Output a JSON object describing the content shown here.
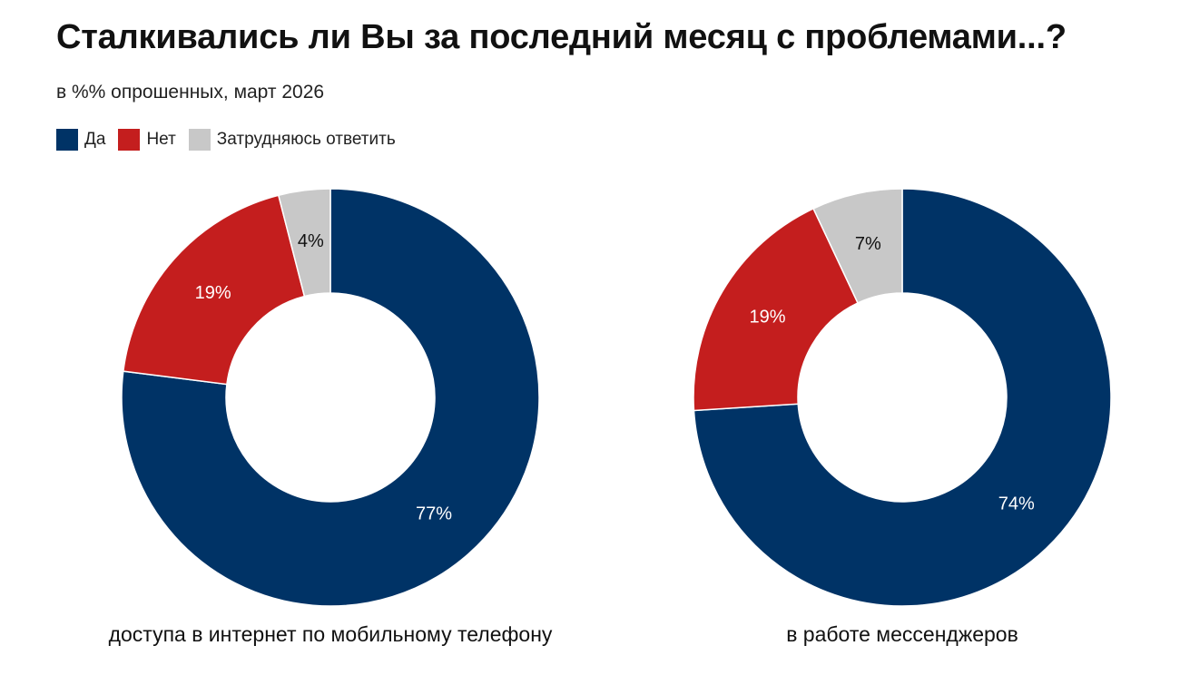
{
  "chart_data": [
    {
      "type": "pie",
      "title": "Сталкивались ли Вы за последний месяц с проблемами...?",
      "subtitle": "в %% опрошенных, март 2026",
      "caption": "доступа в интернет по мобильному телефону",
      "categories": [
        "Да",
        "Нет",
        "Затрудняюсь ответить"
      ],
      "values": [
        77,
        19,
        4
      ],
      "labels": [
        "77%",
        "19%",
        "4%"
      ],
      "colors": [
        "#003366",
        "#C41E1E",
        "#C8C8C8"
      ],
      "legend": "top-left"
    },
    {
      "type": "pie",
      "caption": "в работе мессенджеров",
      "categories": [
        "Да",
        "Нет",
        "Затрудняюсь ответить"
      ],
      "values": [
        74,
        19,
        7
      ],
      "labels": [
        "74%",
        "19%",
        "7%"
      ],
      "colors": [
        "#003366",
        "#C41E1E",
        "#C8C8C8"
      ],
      "legend": "top-left"
    }
  ],
  "header": {
    "title": "Сталкивались ли Вы за последний месяц с проблемами...?",
    "subtitle": "в %% опрошенных, март 2026"
  },
  "legend": {
    "items": [
      {
        "label": "Да",
        "color": "#003366"
      },
      {
        "label": "Нет",
        "color": "#C41E1E"
      },
      {
        "label": "Затрудняюсь ответить",
        "color": "#C8C8C8"
      }
    ]
  },
  "label_colors": [
    "#ffffff",
    "#ffffff",
    "#111111"
  ]
}
